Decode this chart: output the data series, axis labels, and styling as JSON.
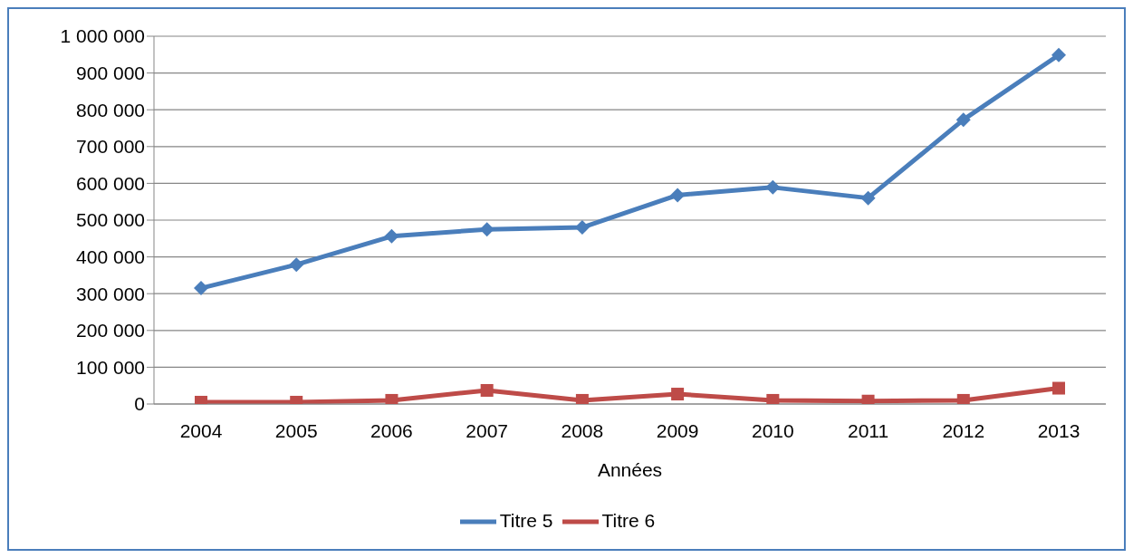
{
  "chart_data": {
    "type": "line",
    "xlabel": "Années",
    "categories": [
      "2004",
      "2005",
      "2006",
      "2007",
      "2008",
      "2009",
      "2010",
      "2011",
      "2012",
      "2013"
    ],
    "series": [
      {
        "name": "Titre 5",
        "color": "#4a7ebb",
        "marker": "diamond",
        "values": [
          315000,
          379000,
          456000,
          475000,
          480000,
          568000,
          589000,
          560000,
          773000,
          949000
        ]
      },
      {
        "name": "Titre 6",
        "color": "#be4b48",
        "marker": "square",
        "values": [
          5000,
          5000,
          10000,
          37000,
          10000,
          27000,
          10000,
          8000,
          10000,
          43000
        ]
      }
    ],
    "ylim": [
      0,
      1000000
    ],
    "yticks": [
      {
        "value": 0,
        "label": "0"
      },
      {
        "value": 100000,
        "label": "100 000"
      },
      {
        "value": 200000,
        "label": "200 000"
      },
      {
        "value": 300000,
        "label": "300 000"
      },
      {
        "value": 400000,
        "label": "400 000"
      },
      {
        "value": 500000,
        "label": "500 000"
      },
      {
        "value": 600000,
        "label": "600 000"
      },
      {
        "value": 700000,
        "label": "700 000"
      },
      {
        "value": 800000,
        "label": "800 000"
      },
      {
        "value": 900000,
        "label": "900 000"
      },
      {
        "value": 1000000,
        "label": "1 000 000"
      }
    ],
    "grid": "y",
    "legend": "bottom",
    "line_style": "solid"
  }
}
